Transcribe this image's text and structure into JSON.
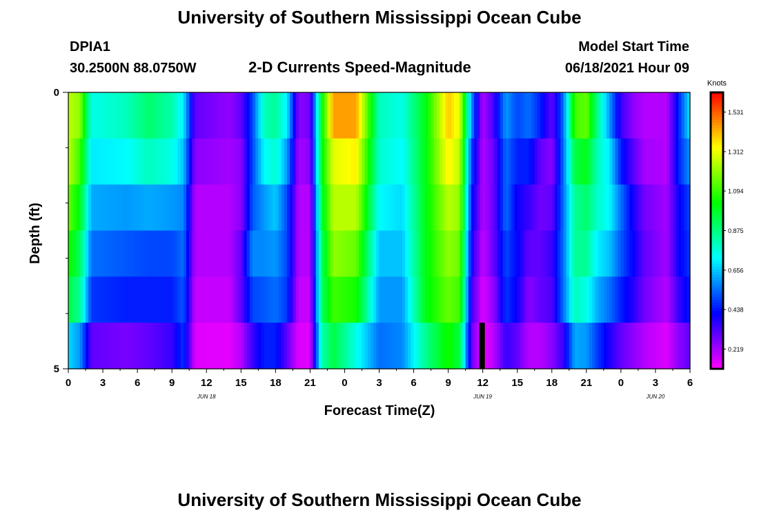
{
  "page": {
    "title_top": "University of Southern Mississippi Ocean Cube",
    "title_bottom": "University of Southern Mississippi Ocean Cube",
    "station_id": "DPIA1",
    "station_coords": "30.2500N  88.0750W",
    "plot_title": "2-D Currents Speed-Magnitude",
    "model_start_label": "Model Start Time",
    "model_start_value": "06/18/2021 Hour 09"
  },
  "chart_data": {
    "type": "heatmap",
    "title": "2-D Currents Speed-Magnitude",
    "xlabel": "Forecast Time(Z)",
    "ylabel": "Depth (ft)",
    "colorbar_label": "Knots",
    "colorbar_ticks": [
      0.219,
      0.438,
      0.656,
      0.875,
      1.094,
      1.312,
      1.531
    ],
    "colorbar_tick_labels": [
      "0.219",
      "0.438",
      "0.656",
      "0.875",
      "1.094",
      "1.312",
      "1.531"
    ],
    "color_range": [
      0.11,
      1.64
    ],
    "x_tick_labels": [
      "0",
      "3",
      "6",
      "9",
      "12",
      "15",
      "18",
      "21",
      "0",
      "3",
      "6",
      "9",
      "12",
      "15",
      "18",
      "21",
      "0",
      "3",
      "6"
    ],
    "date_labels": [
      {
        "label": "JUN 18",
        "tick_index": 4
      },
      {
        "label": "JUN 19",
        "tick_index": 12
      },
      {
        "label": "JUN 20",
        "tick_index": 17
      }
    ],
    "y_tick_labels": [
      "0",
      "5"
    ],
    "ylim": [
      0,
      5
    ],
    "hours": 54,
    "depths_ft": [
      0,
      1,
      2,
      3,
      4,
      5
    ],
    "keyframes": [
      {
        "h": 0,
        "v": [
          1.25,
          1.25,
          1.15,
          1.05,
          0.95,
          0.68
        ]
      },
      {
        "h": 1,
        "v": [
          1.2,
          1.1,
          1.0,
          0.92,
          0.85,
          0.6
        ]
      },
      {
        "h": 2,
        "v": [
          0.75,
          0.7,
          0.62,
          0.55,
          0.48,
          0.3
        ]
      },
      {
        "h": 5,
        "v": [
          0.8,
          0.72,
          0.6,
          0.52,
          0.45,
          0.27
        ]
      },
      {
        "h": 7,
        "v": [
          0.9,
          0.8,
          0.62,
          0.5,
          0.45,
          0.3
        ]
      },
      {
        "h": 9,
        "v": [
          0.82,
          0.75,
          0.6,
          0.5,
          0.45,
          0.35
        ]
      },
      {
        "h": 10,
        "v": [
          0.7,
          0.65,
          0.58,
          0.55,
          0.52,
          0.48
        ]
      },
      {
        "h": 11,
        "v": [
          0.3,
          0.25,
          0.2,
          0.2,
          0.18,
          0.15
        ]
      },
      {
        "h": 14,
        "v": [
          0.24,
          0.22,
          0.2,
          0.2,
          0.18,
          0.14
        ]
      },
      {
        "h": 15,
        "v": [
          0.3,
          0.25,
          0.25,
          0.3,
          0.3,
          0.2
        ]
      },
      {
        "h": 16,
        "v": [
          0.5,
          0.5,
          0.52,
          0.58,
          0.5,
          0.35
        ]
      },
      {
        "h": 17,
        "v": [
          0.8,
          0.72,
          0.6,
          0.58,
          0.52,
          0.45
        ]
      },
      {
        "h": 18,
        "v": [
          0.85,
          0.78,
          0.66,
          0.6,
          0.55,
          0.45
        ]
      },
      {
        "h": 19,
        "v": [
          0.7,
          0.6,
          0.5,
          0.5,
          0.48,
          0.3
        ]
      },
      {
        "h": 20,
        "v": [
          0.25,
          0.22,
          0.2,
          0.2,
          0.18,
          0.15
        ]
      },
      {
        "h": 21,
        "v": [
          0.28,
          0.25,
          0.2,
          0.2,
          0.18,
          0.15
        ]
      },
      {
        "h": 22,
        "v": [
          1.0,
          1.0,
          0.95,
          0.9,
          0.9,
          0.8
        ]
      },
      {
        "h": 23,
        "v": [
          1.45,
          1.3,
          1.25,
          1.2,
          1.1,
          0.95
        ]
      },
      {
        "h": 25,
        "v": [
          1.45,
          1.35,
          1.25,
          1.15,
          1.05,
          0.75
        ]
      },
      {
        "h": 27,
        "v": [
          0.8,
          0.78,
          0.72,
          0.65,
          0.6,
          0.55
        ]
      },
      {
        "h": 29,
        "v": [
          0.75,
          0.72,
          0.68,
          0.65,
          0.6,
          0.58
        ]
      },
      {
        "h": 31,
        "v": [
          1.0,
          1.0,
          1.0,
          1.0,
          1.0,
          0.85
        ]
      },
      {
        "h": 33,
        "v": [
          1.4,
          1.35,
          1.25,
          1.2,
          1.15,
          1.05
        ]
      },
      {
        "h": 34,
        "v": [
          1.3,
          1.25,
          1.2,
          1.15,
          1.1,
          0.95
        ]
      },
      {
        "h": 35,
        "v": [
          0.6,
          0.5,
          0.45,
          0.4,
          0.35,
          0.3
        ]
      },
      {
        "h": 36,
        "v": [
          0.2,
          0.2,
          0.2,
          0.18,
          0.15,
          0.12
        ]
      },
      {
        "h": 37,
        "v": [
          0.35,
          0.3,
          0.3,
          0.3,
          0.25,
          0.2
        ]
      },
      {
        "h": 38,
        "v": [
          0.6,
          0.55,
          0.55,
          0.5,
          0.48,
          0.35
        ]
      },
      {
        "h": 39,
        "v": [
          0.5,
          0.45,
          0.4,
          0.42,
          0.4,
          0.3
        ]
      },
      {
        "h": 40,
        "v": [
          0.55,
          0.45,
          0.35,
          0.3,
          0.25,
          0.2
        ]
      },
      {
        "h": 41,
        "v": [
          0.45,
          0.3,
          0.28,
          0.3,
          0.3,
          0.2
        ]
      },
      {
        "h": 42,
        "v": [
          0.3,
          0.25,
          0.3,
          0.35,
          0.32,
          0.25
        ]
      },
      {
        "h": 43,
        "v": [
          0.55,
          0.55,
          0.55,
          0.55,
          0.55,
          0.35
        ]
      },
      {
        "h": 44,
        "v": [
          1.1,
          0.95,
          0.85,
          0.85,
          0.8,
          0.62
        ]
      },
      {
        "h": 45,
        "v": [
          1.15,
          1.0,
          0.9,
          0.85,
          0.75,
          0.6
        ]
      },
      {
        "h": 46,
        "v": [
          0.85,
          0.8,
          0.78,
          0.7,
          0.62,
          0.48
        ]
      },
      {
        "h": 47,
        "v": [
          0.6,
          0.7,
          0.72,
          0.65,
          0.55,
          0.38
        ]
      },
      {
        "h": 48,
        "v": [
          0.35,
          0.45,
          0.55,
          0.52,
          0.45,
          0.3
        ]
      },
      {
        "h": 49,
        "v": [
          0.25,
          0.32,
          0.4,
          0.42,
          0.38,
          0.25
        ]
      },
      {
        "h": 50,
        "v": [
          0.2,
          0.22,
          0.28,
          0.3,
          0.28,
          0.2
        ]
      },
      {
        "h": 52,
        "v": [
          0.2,
          0.2,
          0.22,
          0.22,
          0.2,
          0.15
        ]
      },
      {
        "h": 53,
        "v": [
          0.45,
          0.45,
          0.4,
          0.4,
          0.35,
          0.25
        ]
      },
      {
        "h": 54,
        "v": [
          0.7,
          0.6,
          0.5,
          0.48,
          0.45,
          0.3
        ]
      }
    ],
    "marker_hour": 36
  }
}
